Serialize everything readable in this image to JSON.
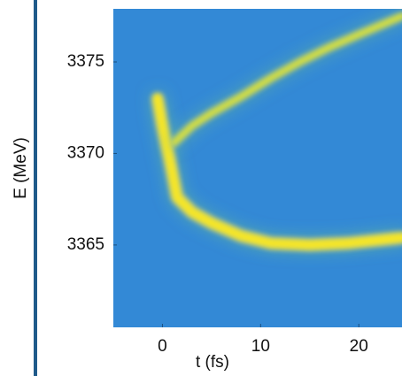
{
  "chart_data": {
    "type": "line",
    "x_label": "t (fs)",
    "y_label": "E (MeV)",
    "xlim": [
      -5,
      24.4
    ],
    "ylim": [
      3360.5,
      3377.9
    ],
    "xticks": [
      0,
      10,
      20
    ],
    "yticks": [
      3365,
      3370,
      3375
    ],
    "background": "#3389d6",
    "series": [
      {
        "color": "#f4e52c",
        "x": [
          -0.5,
          0,
          0.8,
          1.5,
          3,
          5,
          8,
          11,
          15,
          19,
          24.4
        ],
        "values": [
          3373,
          3371.5,
          3369.5,
          3367.6,
          3366.8,
          3366.2,
          3365.5,
          3365.1,
          3365,
          3365.1,
          3365.4
        ]
      },
      {
        "color": "#d2dd45",
        "x": [
          1.2,
          3,
          5,
          8,
          11,
          14,
          17,
          20,
          24.4
        ],
        "values": [
          3370.6,
          3371.5,
          3372.2,
          3373.1,
          3374.1,
          3375,
          3375.8,
          3376.5,
          3377.5
        ]
      }
    ]
  }
}
